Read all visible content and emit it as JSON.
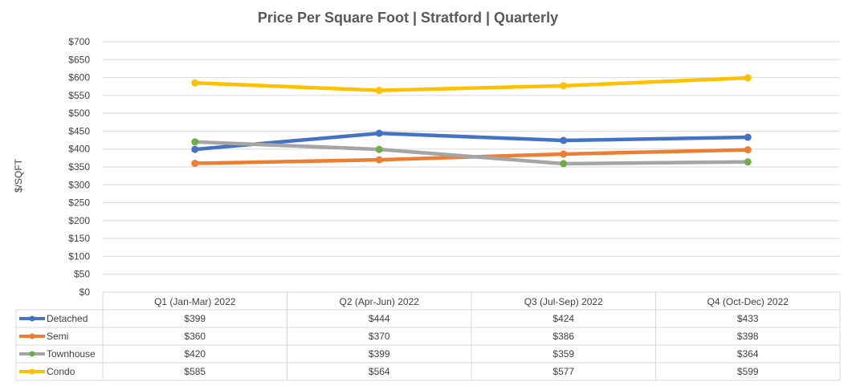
{
  "chart_data": {
    "type": "line",
    "title": "Price Per Square Foot | Stratford | Quarterly",
    "ylabel": "$/SQFT",
    "xlabel": "",
    "ylim": [
      0,
      700
    ],
    "ytick_step": 50,
    "ytick_labels": [
      "$0",
      "$50",
      "$100",
      "$150",
      "$200",
      "$250",
      "$300",
      "$350",
      "$400",
      "$450",
      "$500",
      "$550",
      "$600",
      "$650",
      "$700"
    ],
    "grid": true,
    "legend": "data-table-below",
    "categories": [
      "Q1 (Jan-Mar) 2022",
      "Q2 (Apr-Jun) 2022",
      "Q3 (Jul-Sep) 2022",
      "Q4 (Oct-Dec) 2022"
    ],
    "series": [
      {
        "name": "Detached",
        "color": "#4472c4",
        "values": [
          399,
          444,
          424,
          433
        ],
        "labels": [
          "$399",
          "$444",
          "$424",
          "$433"
        ]
      },
      {
        "name": "Semi",
        "color": "#ed7d31",
        "values": [
          360,
          370,
          386,
          398
        ],
        "labels": [
          "$360",
          "$370",
          "$386",
          "$398"
        ]
      },
      {
        "name": "Townhouse",
        "color": "#a5a5a5",
        "marker_color": "#70ad47",
        "values": [
          420,
          399,
          359,
          364
        ],
        "labels": [
          "$420",
          "$399",
          "$359",
          "$364"
        ]
      },
      {
        "name": "Condo",
        "color": "#ffc000",
        "values": [
          585,
          564,
          577,
          599
        ],
        "labels": [
          "$585",
          "$564",
          "$577",
          "$599"
        ]
      }
    ]
  }
}
